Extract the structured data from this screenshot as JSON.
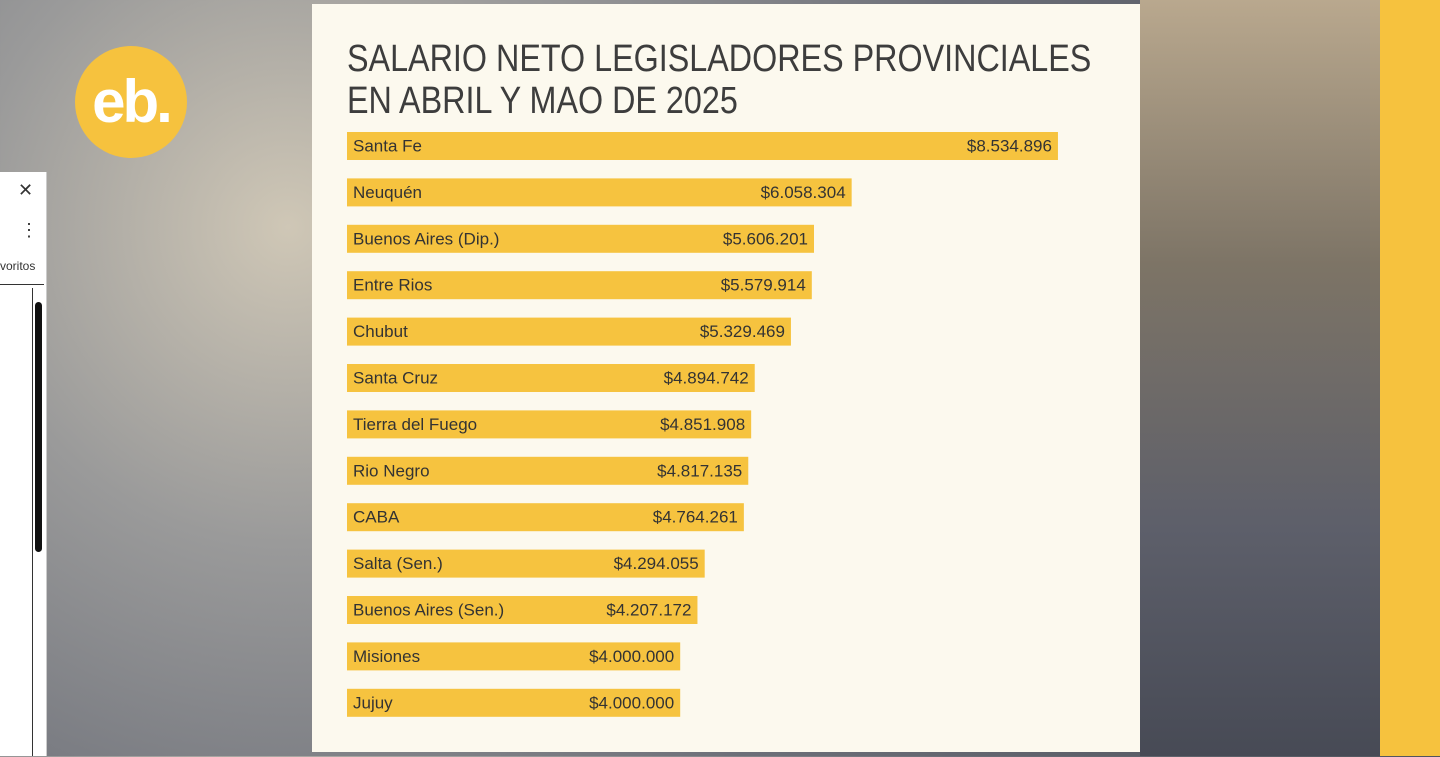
{
  "logo": "eb.",
  "side_panel": {
    "label": "voritos"
  },
  "chart_data": {
    "type": "bar",
    "orientation": "horizontal",
    "title": "SALARIO NETO LEGISLADORES PROVINCIALES EN ABRIL Y MAO DE 2025",
    "categories": [
      "Santa Fe",
      "Neuquén",
      "Buenos Aires (Dip.)",
      "Entre Rios",
      "Chubut",
      "Santa Cruz",
      "Tierra del Fuego",
      "Rio Negro",
      "CABA",
      "Salta (Sen.)",
      "Buenos Aires (Sen.)",
      "Misiones",
      "Jujuy"
    ],
    "values": [
      8534896,
      6058304,
      5606201,
      5579914,
      5329469,
      4894742,
      4851908,
      4817135,
      4764261,
      4294055,
      4207172,
      4000000,
      4000000
    ],
    "value_labels": [
      "$8.534.896",
      "$6.058.304",
      "$5.606.201",
      "$5.579.914",
      "$5.329.469",
      "$4.894.742",
      "$4.851.908",
      "$4.817.135",
      "$4.764.261",
      "$4.294.055",
      "$4.207.172",
      "$4.000.000",
      "$4.000.000"
    ],
    "color": "#f6c33f",
    "xlim": [
      0,
      10000000
    ]
  }
}
